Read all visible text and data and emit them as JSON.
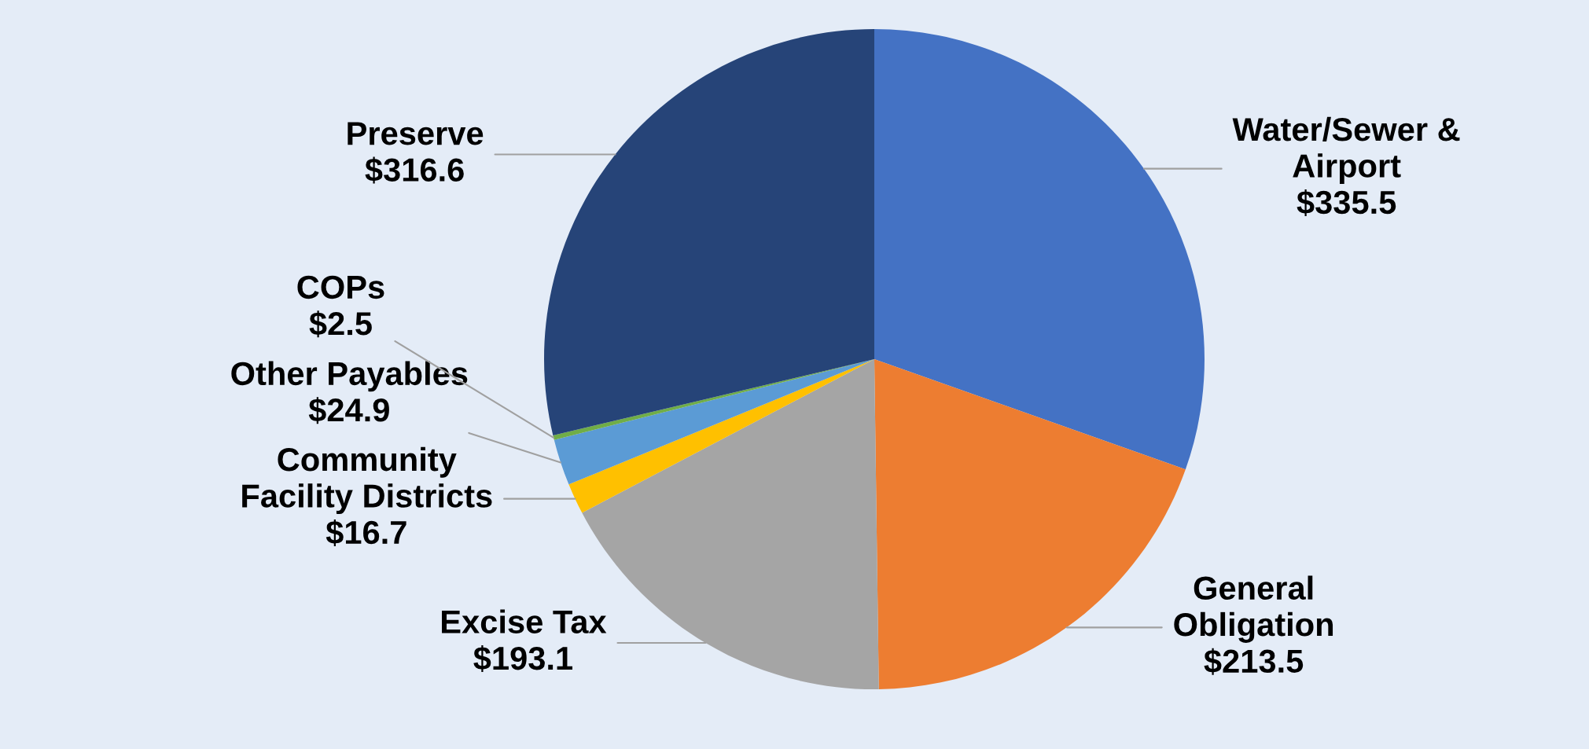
{
  "chart_data": {
    "type": "pie",
    "categories": [
      "Water/Sewer &\nAirport",
      "General\nObligation",
      "Excise Tax",
      "Community\nFacility Districts",
      "Other Payables",
      "COPs",
      "Preserve"
    ],
    "values": [
      335.5,
      213.5,
      193.1,
      16.7,
      24.9,
      2.5,
      316.6
    ],
    "value_labels": [
      "$335.5",
      "$213.5",
      "$193.1",
      "$16.7",
      "$24.9",
      "$2.5",
      "$316.6"
    ],
    "colors": [
      "#4472c4",
      "#ed7d31",
      "#a5a5a5",
      "#ffc000",
      "#5b9bd5",
      "#70ad47",
      "#264478"
    ],
    "legend": false
  }
}
